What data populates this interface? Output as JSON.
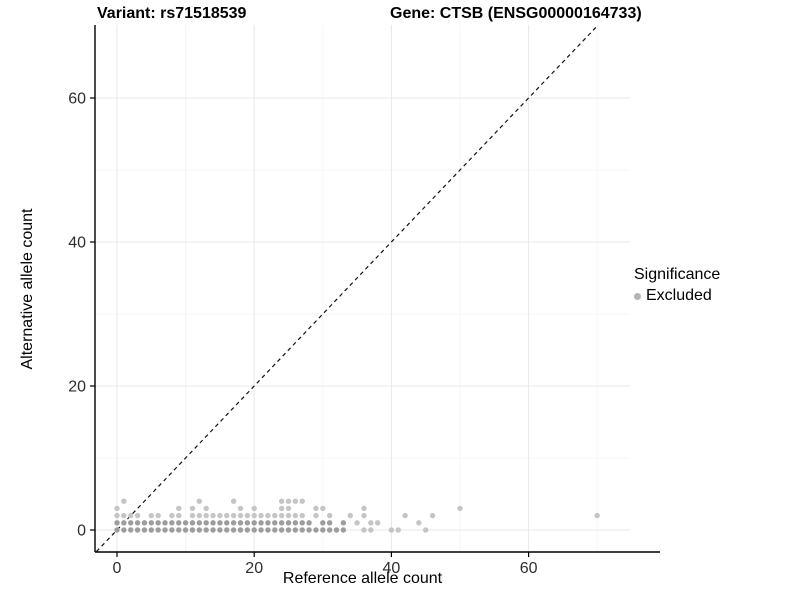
{
  "chart_data": {
    "type": "scatter",
    "titles": {
      "variant": "Variant: rs71518539",
      "gene": "Gene: CTSB (ENSG00000164733)"
    },
    "xlabel": "Reference allele count",
    "ylabel": "Alternative allele count",
    "x_ticks": [
      0,
      20,
      40,
      60
    ],
    "y_ticks": [
      0,
      20,
      40,
      60
    ],
    "x_minor": [
      10,
      30,
      50,
      70
    ],
    "y_minor": [
      10,
      30,
      50
    ],
    "xlim": [
      -3.2,
      74.8
    ],
    "ylim": [
      -3,
      70
    ],
    "grid": true,
    "identity_line": {
      "style": "dashed",
      "slope": 1,
      "intercept": 0
    },
    "legend": {
      "position": "right",
      "title": "Significance",
      "items": [
        {
          "label": "Excluded",
          "color": "#b4b4b4"
        }
      ]
    },
    "series": [
      {
        "name": "Excluded",
        "points_dense": [
          [
            0,
            0
          ],
          [
            1,
            0
          ],
          [
            2,
            0
          ],
          [
            3,
            0
          ],
          [
            4,
            0
          ],
          [
            5,
            0
          ],
          [
            6,
            0
          ],
          [
            7,
            0
          ],
          [
            8,
            0
          ],
          [
            9,
            0
          ],
          [
            10,
            0
          ],
          [
            11,
            0
          ],
          [
            12,
            0
          ],
          [
            13,
            0
          ],
          [
            14,
            0
          ],
          [
            15,
            0
          ],
          [
            16,
            0
          ],
          [
            17,
            0
          ],
          [
            18,
            0
          ],
          [
            19,
            0
          ],
          [
            20,
            0
          ],
          [
            21,
            0
          ],
          [
            22,
            0
          ],
          [
            23,
            0
          ],
          [
            24,
            0
          ],
          [
            25,
            0
          ],
          [
            26,
            0
          ],
          [
            27,
            0
          ],
          [
            28,
            0
          ],
          [
            29,
            0
          ],
          [
            30,
            0
          ],
          [
            31,
            0
          ],
          [
            32,
            0
          ],
          [
            33,
            0
          ],
          [
            0,
            1
          ],
          [
            1,
            1
          ],
          [
            2,
            1
          ],
          [
            3,
            1
          ],
          [
            4,
            1
          ],
          [
            5,
            1
          ],
          [
            6,
            1
          ],
          [
            7,
            1
          ],
          [
            8,
            1
          ],
          [
            9,
            1
          ],
          [
            10,
            1
          ],
          [
            11,
            1
          ],
          [
            12,
            1
          ],
          [
            13,
            1
          ],
          [
            14,
            1
          ],
          [
            15,
            1
          ],
          [
            16,
            1
          ],
          [
            17,
            1
          ],
          [
            18,
            1
          ],
          [
            19,
            1
          ],
          [
            20,
            1
          ],
          [
            21,
            1
          ],
          [
            22,
            1
          ],
          [
            23,
            1
          ],
          [
            24,
            1
          ],
          [
            25,
            1
          ],
          [
            26,
            1
          ],
          [
            27,
            1
          ],
          [
            28,
            1
          ],
          [
            30,
            1
          ],
          [
            31,
            1
          ],
          [
            33,
            1
          ]
        ],
        "points_sparse": [
          [
            36,
            0
          ],
          [
            37,
            0
          ],
          [
            40,
            0
          ],
          [
            41,
            0
          ],
          [
            45,
            0
          ],
          [
            35,
            1
          ],
          [
            37,
            1
          ],
          [
            38,
            1
          ],
          [
            44,
            1
          ],
          [
            0,
            2
          ],
          [
            1,
            2
          ],
          [
            2,
            2
          ],
          [
            3,
            2
          ],
          [
            5,
            2
          ],
          [
            6,
            2
          ],
          [
            8,
            2
          ],
          [
            9,
            2
          ],
          [
            11,
            2
          ],
          [
            12,
            2
          ],
          [
            13,
            2
          ],
          [
            14,
            2
          ],
          [
            15,
            2
          ],
          [
            16,
            2
          ],
          [
            17,
            2
          ],
          [
            18,
            2
          ],
          [
            19,
            2
          ],
          [
            20,
            2
          ],
          [
            21,
            2
          ],
          [
            22,
            2
          ],
          [
            23,
            2
          ],
          [
            24,
            2
          ],
          [
            25,
            2
          ],
          [
            26,
            2
          ],
          [
            27,
            2
          ],
          [
            29,
            2
          ],
          [
            31,
            2
          ],
          [
            34,
            2
          ],
          [
            36,
            2
          ],
          [
            42,
            2
          ],
          [
            46,
            2
          ],
          [
            70,
            2
          ],
          [
            0,
            3
          ],
          [
            9,
            3
          ],
          [
            11,
            3
          ],
          [
            13,
            3
          ],
          [
            18,
            3
          ],
          [
            20,
            3
          ],
          [
            24,
            3
          ],
          [
            25,
            3
          ],
          [
            29,
            3
          ],
          [
            30,
            3
          ],
          [
            36,
            3
          ],
          [
            50,
            3
          ],
          [
            1,
            4
          ],
          [
            12,
            4
          ],
          [
            17,
            4
          ],
          [
            24,
            4
          ],
          [
            25,
            4
          ],
          [
            26,
            4
          ],
          [
            27,
            4
          ]
        ]
      }
    ],
    "colors": {
      "point_dark": "#9d9d9d",
      "point_light": "#c5c5c5",
      "grid_major": "#e8e8e8",
      "grid_minor": "#f4f4f4",
      "axis_line": "#000000",
      "tick_text": "#2e2e2e",
      "identity_line": "#111111"
    }
  }
}
